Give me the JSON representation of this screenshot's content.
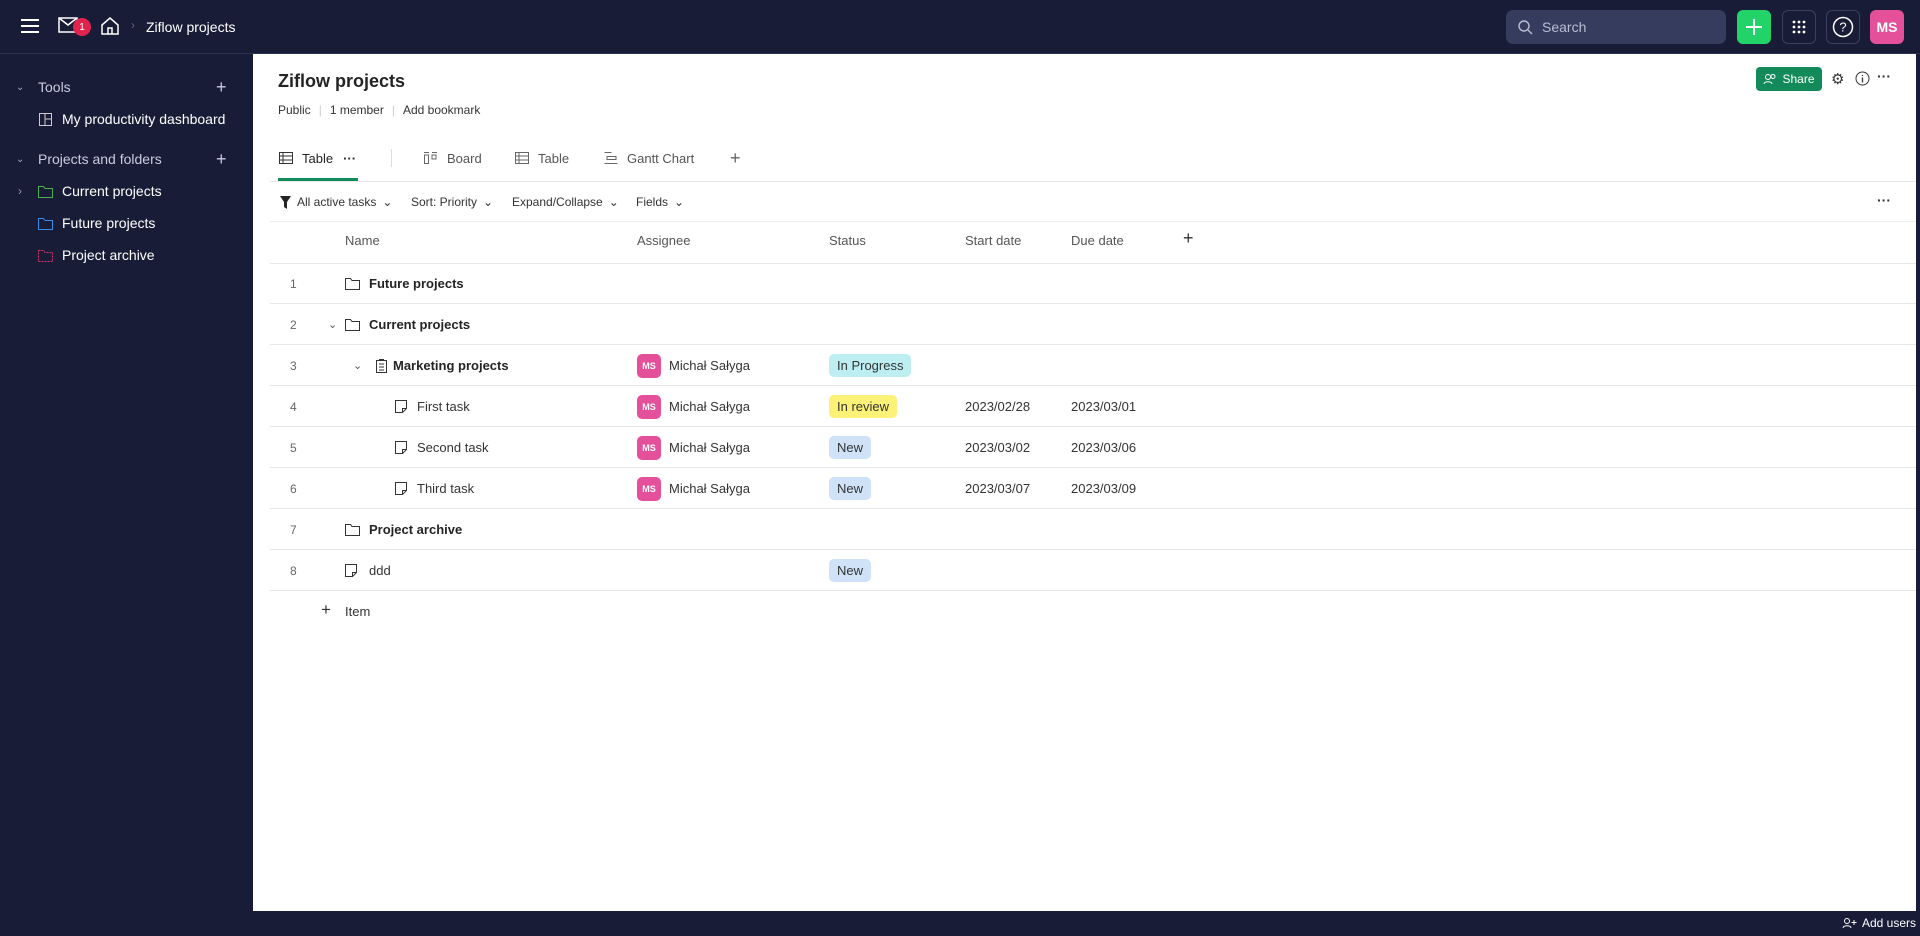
{
  "topbar": {
    "mail_badge": "1",
    "breadcrumb": "Ziflow projects",
    "search_placeholder": "Search",
    "user_initials": "MS"
  },
  "sidebar": {
    "tools_label": "Tools",
    "tools_items": [
      {
        "label": "My productivity dashboard"
      }
    ],
    "projects_label": "Projects and folders",
    "projects_items": [
      {
        "label": "Current projects",
        "color": "#4caf50"
      },
      {
        "label": "Future projects",
        "color": "#3b8ee8"
      },
      {
        "label": "Project archive",
        "color": "#d6336c"
      }
    ]
  },
  "header": {
    "title": "Ziflow projects",
    "visibility": "Public",
    "members": "1 member",
    "bookmark": "Add bookmark",
    "share_label": "Share"
  },
  "tabs": [
    {
      "label": "Table",
      "active": true
    },
    {
      "label": "Board"
    },
    {
      "label": "Table"
    },
    {
      "label": "Gantt Chart"
    }
  ],
  "filters": {
    "filter": "All active tasks",
    "sort": "Sort: Priority",
    "expand": "Expand/Collapse",
    "fields": "Fields"
  },
  "columns": {
    "name": "Name",
    "assignee": "Assignee",
    "status": "Status",
    "start": "Start date",
    "due": "Due date"
  },
  "rows": [
    {
      "num": "1",
      "name": "Future projects",
      "type": "folder"
    },
    {
      "num": "2",
      "name": "Current projects",
      "type": "folder",
      "expanded": true
    },
    {
      "num": "3",
      "name": "Marketing projects",
      "type": "project",
      "expanded": true,
      "assignee": "Michał Sałyga",
      "status": "In Progress"
    },
    {
      "num": "4",
      "name": "First task",
      "type": "task",
      "assignee": "Michał Sałyga",
      "status": "In review",
      "start": "2023/02/28",
      "due": "2023/03/01"
    },
    {
      "num": "5",
      "name": "Second task",
      "type": "task",
      "assignee": "Michał Sałyga",
      "status": "New",
      "start": "2023/03/02",
      "due": "2023/03/06"
    },
    {
      "num": "6",
      "name": "Third task",
      "type": "task",
      "assignee": "Michał Sałyga",
      "status": "New",
      "start": "2023/03/07",
      "due": "2023/03/09"
    },
    {
      "num": "7",
      "name": "Project archive",
      "type": "folder"
    },
    {
      "num": "8",
      "name": "ddd",
      "type": "task-root",
      "status": "New"
    }
  ],
  "assignee_initials": "MS",
  "status_colors": {
    "In Progress": "#bdeef2",
    "In review": "#fbf277",
    "New": "#cfe2f8"
  },
  "add_item": "Item",
  "footer": {
    "add_users": "Add users"
  }
}
